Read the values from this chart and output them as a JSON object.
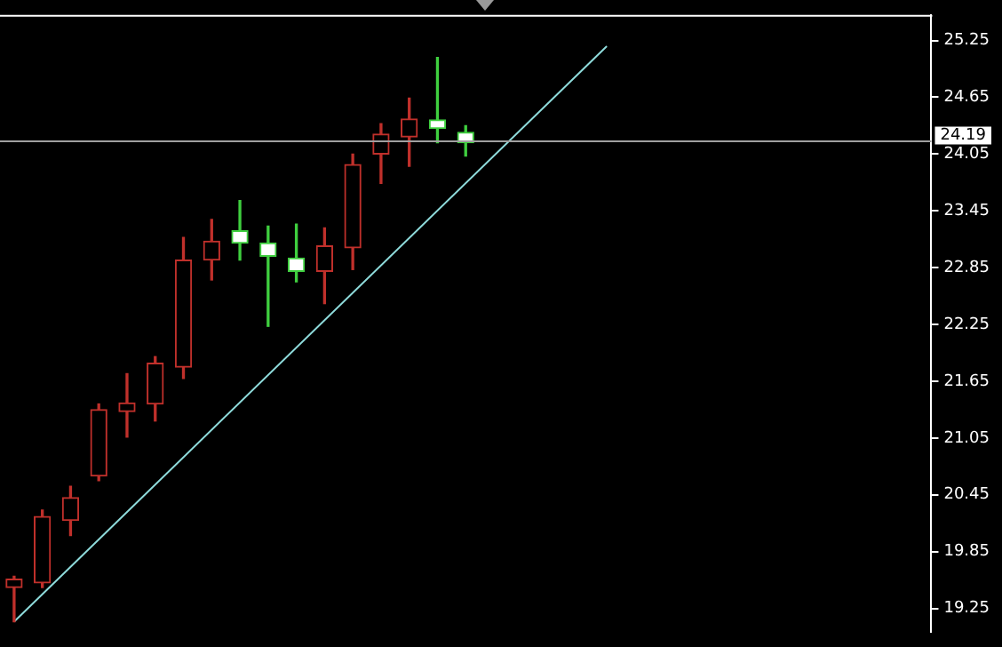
{
  "chart_data": {
    "type": "candlestick",
    "categories": [
      null,
      null,
      null,
      null,
      null,
      null,
      null,
      null,
      null,
      null,
      null,
      null,
      null,
      null,
      null,
      null,
      null,
      null,
      null,
      null,
      null,
      null,
      null,
      null,
      null,
      null,
      null,
      null,
      null,
      null,
      null,
      null,
      null
    ],
    "ohlc": [
      [
        19.47,
        19.59,
        19.11,
        19.56
      ],
      [
        19.52,
        20.29,
        19.47,
        20.22
      ],
      [
        20.18,
        20.54,
        20.02,
        20.42
      ],
      [
        20.65,
        21.41,
        20.6,
        21.35
      ],
      [
        21.33,
        21.73,
        21.06,
        21.42
      ],
      [
        21.41,
        21.91,
        21.23,
        21.84
      ],
      [
        21.8,
        23.17,
        21.68,
        22.93
      ],
      [
        22.93,
        23.36,
        22.72,
        23.13
      ],
      [
        23.24,
        23.56,
        22.93,
        23.11
      ],
      [
        23.11,
        23.29,
        22.23,
        22.97
      ],
      [
        22.95,
        23.31,
        22.7,
        22.81
      ],
      [
        22.81,
        23.27,
        22.47,
        23.08
      ],
      [
        23.06,
        24.05,
        22.83,
        23.94
      ],
      [
        24.05,
        24.37,
        23.74,
        24.26
      ],
      [
        24.23,
        24.64,
        23.92,
        24.42
      ],
      [
        24.41,
        25.07,
        24.17,
        24.32
      ],
      [
        24.28,
        24.35,
        24.03,
        24.17
      ],
      null,
      null,
      null,
      null,
      null,
      null,
      null,
      null,
      null,
      null,
      null,
      null,
      null,
      null,
      null,
      null
    ],
    "colors": [
      "#c0302b",
      "#c0302b",
      "#c0302b",
      "#c0302b",
      "#c0302b",
      "#c0302b",
      "#c0302b",
      "#c0302b",
      "#3fcf3f",
      "#3fcf3f",
      "#3fcf3f",
      "#c0302b",
      "#c0302b",
      "#c0302b",
      "#c0302b",
      "#3fcf3f",
      "#3fcf3f",
      null,
      null,
      null,
      null,
      null,
      null,
      null,
      null,
      null,
      null,
      null,
      null,
      null,
      null,
      null,
      null
    ],
    "series": [
      {
        "type": "line",
        "color": "#8fdcdc",
        "values": [
          19.11,
          null,
          null,
          null,
          null,
          null,
          null,
          null,
          null,
          null,
          null,
          null,
          null,
          null,
          null,
          null,
          null,
          null,
          null,
          null,
          null,
          25.19,
          null,
          null,
          null,
          null,
          null,
          null,
          null,
          null,
          null,
          null,
          null
        ]
      }
    ],
    "ylim": [
      19.0,
      25.52
    ],
    "yticks": [
      19.25,
      19.85,
      20.45,
      21.05,
      21.65,
      22.25,
      22.85,
      23.45,
      24.05,
      24.65,
      25.25
    ],
    "ref_lines": [
      {
        "axis": "y",
        "value": 24.19,
        "label": "24.19",
        "color": "#a0a0a0"
      }
    ],
    "tick_labels": "y",
    "grid": false
  }
}
